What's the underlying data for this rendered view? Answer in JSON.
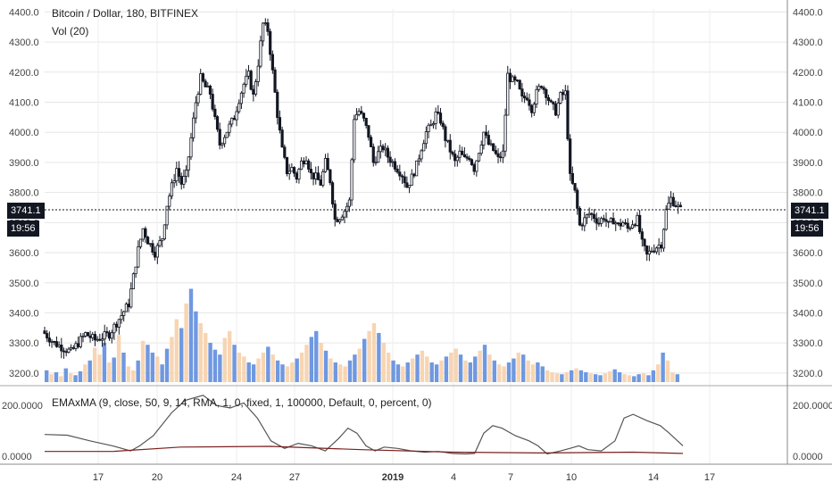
{
  "header": {
    "title": "Bitcoin / Dollar, 180, BITFINEX",
    "volume_label": "Vol (20)",
    "indicator_label": "EMAxMA (9, close, 50, 9, 14, RMA, 1, 0, fixed, 1, 100000, Default, 0, percent, 0)"
  },
  "current_price": {
    "value": "3741.1",
    "countdown": "19:56"
  },
  "chart_data": [
    {
      "type": "candlestick",
      "title": "Bitcoin / Dollar, 180, BITFINEX",
      "y_ticks": [
        "4400.0",
        "4300.0",
        "4200.0",
        "4100.0",
        "4000.0",
        "3900.0",
        "3800.0",
        "3700.0",
        "3600.0",
        "3500.0",
        "3400.0",
        "3300.0",
        "3200.0"
      ],
      "ylim": [
        3170,
        4410
      ],
      "x_tick_labels": [
        "17",
        "20",
        "24",
        "27",
        "2019",
        "4",
        "7",
        "10",
        "14",
        "17"
      ],
      "close_path": [
        [
          0,
          3340
        ],
        [
          5,
          3300
        ],
        [
          12,
          3270
        ],
        [
          18,
          3330
        ],
        [
          22,
          3310
        ],
        [
          28,
          3330
        ],
        [
          32,
          3380
        ],
        [
          36,
          3430
        ],
        [
          38,
          3520
        ],
        [
          40,
          3610
        ],
        [
          42,
          3680
        ],
        [
          44,
          3640
        ],
        [
          47,
          3600
        ],
        [
          50,
          3650
        ],
        [
          52,
          3760
        ],
        [
          54,
          3820
        ],
        [
          56,
          3880
        ],
        [
          58,
          3830
        ],
        [
          60,
          3860
        ],
        [
          62,
          3980
        ],
        [
          64,
          4100
        ],
        [
          66,
          4180
        ],
        [
          68,
          4150
        ],
        [
          70,
          4130
        ],
        [
          72,
          4040
        ],
        [
          74,
          3960
        ],
        [
          76,
          3990
        ],
        [
          78,
          4020
        ],
        [
          80,
          4050
        ],
        [
          82,
          4110
        ],
        [
          84,
          4160
        ],
        [
          86,
          4190
        ],
        [
          88,
          4120
        ],
        [
          90,
          4230
        ],
        [
          92,
          4360
        ],
        [
          94,
          4340
        ],
        [
          96,
          4200
        ],
        [
          98,
          4060
        ],
        [
          100,
          3940
        ],
        [
          102,
          3870
        ],
        [
          104,
          3880
        ],
        [
          106,
          3850
        ],
        [
          108,
          3900
        ],
        [
          110,
          3920
        ],
        [
          112,
          3860
        ],
        [
          114,
          3850
        ],
        [
          116,
          3830
        ],
        [
          118,
          3900
        ],
        [
          120,
          3840
        ],
        [
          122,
          3710
        ],
        [
          124,
          3720
        ],
        [
          126,
          3740
        ],
        [
          128,
          3770
        ],
        [
          130,
          4050
        ],
        [
          132,
          4070
        ],
        [
          134,
          4040
        ],
        [
          136,
          3990
        ],
        [
          138,
          3900
        ],
        [
          140,
          3930
        ],
        [
          142,
          3950
        ],
        [
          144,
          3920
        ],
        [
          146,
          3900
        ],
        [
          148,
          3880
        ],
        [
          150,
          3860
        ],
        [
          152,
          3820
        ],
        [
          154,
          3850
        ],
        [
          156,
          3890
        ],
        [
          158,
          3950
        ],
        [
          160,
          4000
        ],
        [
          162,
          4020
        ],
        [
          164,
          4060
        ],
        [
          166,
          4040
        ],
        [
          168,
          3980
        ],
        [
          170,
          3940
        ],
        [
          172,
          3900
        ],
        [
          174,
          3930
        ],
        [
          176,
          3910
        ],
        [
          178,
          3920
        ],
        [
          180,
          3880
        ],
        [
          182,
          3940
        ],
        [
          184,
          4000
        ],
        [
          186,
          3960
        ],
        [
          188,
          3940
        ],
        [
          190,
          3910
        ],
        [
          192,
          3930
        ],
        [
          194,
          4190
        ],
        [
          196,
          4170
        ],
        [
          198,
          4160
        ],
        [
          200,
          4110
        ],
        [
          202,
          4120
        ],
        [
          204,
          4080
        ],
        [
          206,
          4130
        ],
        [
          208,
          4160
        ],
        [
          210,
          4130
        ],
        [
          212,
          4090
        ],
        [
          214,
          4070
        ],
        [
          216,
          4120
        ],
        [
          218,
          4130
        ],
        [
          220,
          3850
        ],
        [
          222,
          3800
        ],
        [
          224,
          3690
        ],
        [
          226,
          3710
        ],
        [
          228,
          3730
        ],
        [
          230,
          3720
        ],
        [
          232,
          3700
        ],
        [
          234,
          3720
        ],
        [
          236,
          3690
        ],
        [
          238,
          3710
        ],
        [
          240,
          3690
        ],
        [
          242,
          3700
        ],
        [
          244,
          3680
        ],
        [
          246,
          3700
        ],
        [
          248,
          3710
        ],
        [
          250,
          3630
        ],
        [
          252,
          3590
        ],
        [
          254,
          3610
        ],
        [
          256,
          3620
        ],
        [
          258,
          3630
        ],
        [
          260,
          3740
        ],
        [
          262,
          3780
        ],
        [
          264,
          3760
        ],
        [
          266,
          3741
        ]
      ]
    },
    {
      "type": "bar",
      "title": "Vol (20)",
      "series_colors": {
        "up": "#6f98e0",
        "down": "#f7d5b3"
      },
      "values": [
        12,
        8,
        10,
        6,
        14,
        9,
        7,
        11,
        18,
        22,
        35,
        28,
        40,
        20,
        25,
        48,
        30,
        16,
        12,
        22,
        42,
        38,
        30,
        26,
        18,
        34,
        46,
        64,
        55,
        80,
        95,
        72,
        60,
        50,
        40,
        33,
        28,
        45,
        52,
        38,
        30,
        26,
        20,
        18,
        24,
        30,
        36,
        28,
        22,
        18,
        16,
        20,
        24,
        30,
        38,
        46,
        52,
        40,
        32,
        24,
        20,
        18,
        16,
        22,
        28,
        34,
        44,
        52,
        60,
        50,
        40,
        30,
        22,
        18,
        16,
        20,
        24,
        28,
        32,
        26,
        20,
        18,
        22,
        26,
        30,
        34,
        28,
        22,
        20,
        26,
        32,
        38,
        28,
        22,
        18,
        16,
        20,
        24,
        30,
        28,
        22,
        18,
        20,
        16,
        12,
        10,
        9,
        8,
        10,
        12,
        14,
        12,
        10,
        9,
        8,
        7,
        9,
        11,
        13,
        10,
        8,
        7,
        6,
        8,
        9,
        7,
        12,
        18,
        30,
        22,
        10,
        8
      ],
      "directions": "udududuududdudududduduuduudduduudduuuddudduudduduuddudduudududduududdudduudududduududduduudududduududduudddududuuduudduudduuduududduuduu"
    },
    {
      "type": "line",
      "title": "EMAxMA (9, close, 50, 9, 14, RMA, 1, 0, fixed, 1, 100000, Default, 0, percent, 0)",
      "y_ticks": [
        "200.0000",
        "0.0000"
      ],
      "ylim": [
        -15,
        250
      ],
      "series": [
        {
          "color": "#555555",
          "values": [
            [
              0,
              85
            ],
            [
              10,
              82
            ],
            [
              20,
              60
            ],
            [
              30,
              40
            ],
            [
              38,
              20
            ],
            [
              42,
              40
            ],
            [
              48,
              80
            ],
            [
              56,
              170
            ],
            [
              62,
              220
            ],
            [
              70,
              240
            ],
            [
              76,
              200
            ],
            [
              82,
              190
            ],
            [
              88,
              210
            ],
            [
              94,
              150
            ],
            [
              100,
              60
            ],
            [
              106,
              30
            ],
            [
              112,
              50
            ],
            [
              118,
              40
            ],
            [
              124,
              20
            ],
            [
              130,
              70
            ],
            [
              134,
              110
            ],
            [
              138,
              90
            ],
            [
              142,
              40
            ],
            [
              146,
              20
            ],
            [
              150,
              35
            ],
            [
              156,
              30
            ],
            [
              162,
              20
            ],
            [
              168,
              15
            ],
            [
              174,
              18
            ],
            [
              180,
              10
            ],
            [
              186,
              8
            ],
            [
              190,
              10
            ],
            [
              194,
              90
            ],
            [
              198,
              120
            ],
            [
              202,
              110
            ],
            [
              208,
              80
            ],
            [
              214,
              60
            ],
            [
              218,
              40
            ],
            [
              222,
              8
            ],
            [
              228,
              20
            ],
            [
              232,
              30
            ],
            [
              236,
              40
            ],
            [
              240,
              25
            ],
            [
              246,
              20
            ],
            [
              252,
              60
            ],
            [
              256,
              150
            ],
            [
              260,
              165
            ],
            [
              266,
              140
            ],
            [
              272,
              120
            ],
            [
              276,
              90
            ],
            [
              282,
              40
            ]
          ]
        },
        {
          "color": "#7a1f1f",
          "values": [
            [
              0,
              18
            ],
            [
              30,
              18
            ],
            [
              60,
              35
            ],
            [
              100,
              38
            ],
            [
              140,
              25
            ],
            [
              180,
              15
            ],
            [
              220,
              12
            ],
            [
              260,
              15
            ],
            [
              282,
              10
            ]
          ]
        }
      ]
    }
  ]
}
